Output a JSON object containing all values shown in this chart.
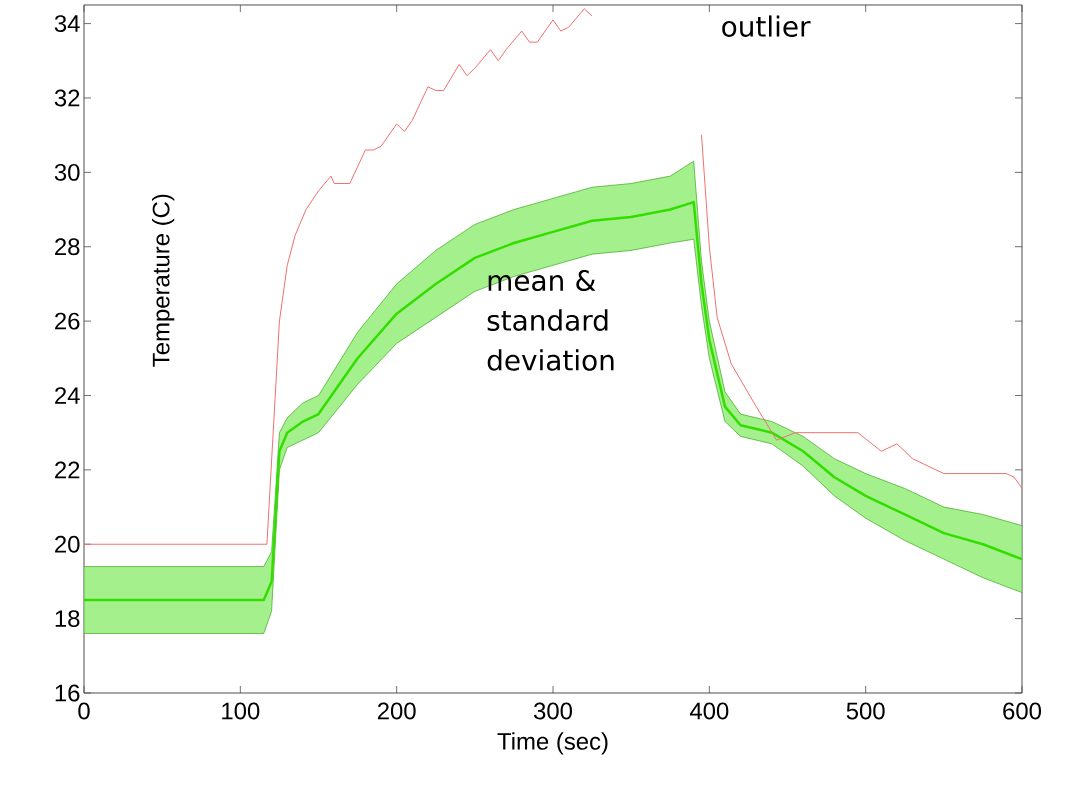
{
  "chart_data": {
    "type": "line",
    "xlabel": "Time (sec)",
    "ylabel": "Temperature (C)",
    "xlim": [
      0,
      600
    ],
    "ylim": [
      16,
      34.5
    ],
    "xticks": [
      0,
      100,
      200,
      300,
      400,
      500,
      600
    ],
    "yticks": [
      16,
      18,
      20,
      22,
      24,
      26,
      28,
      30,
      32,
      34
    ],
    "grid": false,
    "marker": "none",
    "line_style": "solid",
    "annotations": [
      "outlier",
      "mean & standard deviation"
    ],
    "series": [
      {
        "color": "#f07070",
        "x": [
          0,
          117,
          121,
          125,
          130,
          135,
          142,
          150,
          158,
          160,
          170,
          180,
          185,
          190,
          200,
          205,
          210,
          220,
          225,
          230,
          240,
          245,
          250,
          260,
          265,
          270,
          280,
          285,
          290,
          300,
          305,
          310,
          320,
          325,
          330,
          390,
          395,
          400,
          405,
          414,
          430,
          443,
          455,
          495,
          510,
          520,
          530,
          540,
          550,
          590,
          595,
          600
        ],
        "values": [
          20,
          20,
          23,
          26,
          27.5,
          28.3,
          29,
          29.5,
          29.9,
          29.7,
          29.7,
          30.6,
          30.6,
          30.7,
          31.3,
          31.1,
          31.4,
          32.3,
          32.2,
          32.2,
          32.9,
          32.6,
          32.8,
          33.3,
          33.0,
          33.3,
          33.8,
          33.5,
          33.5,
          34.1,
          33.8,
          33.9,
          34.4,
          34.2,
          null,
          null,
          31,
          28,
          26.1,
          24.85,
          23.7,
          22.8,
          23.0,
          23.0,
          22.5,
          22.7,
          22.3,
          22.1,
          21.9,
          21.9,
          21.8,
          21.5
        ]
      },
      {
        "color": "#33dd00",
        "x": [
          0,
          50,
          115,
          120,
          125,
          130,
          140,
          150,
          175,
          200,
          225,
          250,
          275,
          300,
          325,
          350,
          375,
          390,
          395,
          400,
          410,
          420,
          440,
          460,
          480,
          500,
          525,
          550,
          575,
          600
        ],
        "values": [
          18.5,
          18.5,
          18.5,
          19,
          22.5,
          23.0,
          23.3,
          23.5,
          25,
          26.2,
          27,
          27.7,
          28.1,
          28.4,
          28.7,
          28.8,
          29,
          29.2,
          27,
          25.5,
          23.7,
          23.2,
          23.0,
          22.5,
          21.8,
          21.3,
          20.8,
          20.3,
          20.0,
          19.6
        ],
        "lower": [
          17.6,
          17.6,
          17.6,
          18.2,
          22.0,
          22.6,
          22.8,
          23.0,
          24.3,
          25.4,
          26.1,
          26.8,
          27.2,
          27.5,
          27.8,
          27.9,
          28.1,
          28.2,
          26.4,
          25.0,
          23.3,
          22.9,
          22.7,
          22.1,
          21.3,
          20.7,
          20.1,
          19.6,
          19.1,
          18.7
        ],
        "upper": [
          19.4,
          19.4,
          19.4,
          19.8,
          23.0,
          23.4,
          23.8,
          24.0,
          25.7,
          27.0,
          27.9,
          28.6,
          29.0,
          29.3,
          29.6,
          29.7,
          29.9,
          30.3,
          27.6,
          26.0,
          24.1,
          23.5,
          23.3,
          22.9,
          22.3,
          21.9,
          21.5,
          21.0,
          20.8,
          20.5
        ]
      }
    ]
  }
}
